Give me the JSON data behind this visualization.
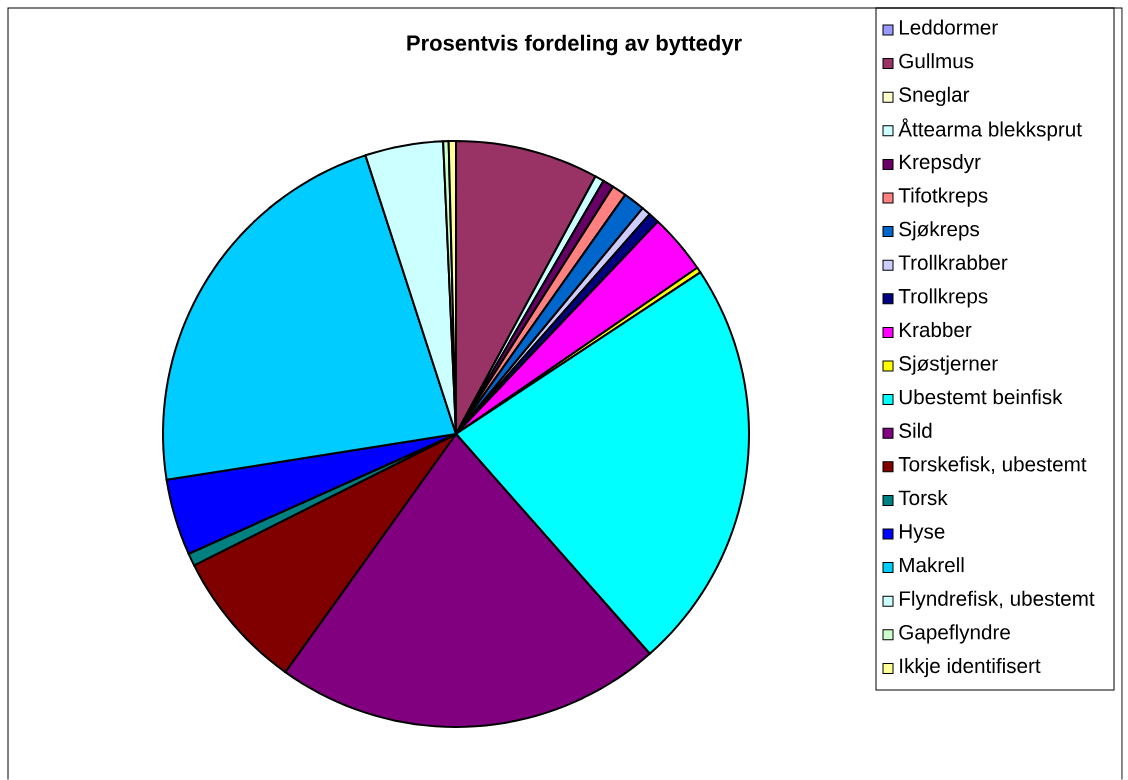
{
  "chart_data": {
    "type": "pie",
    "title": "Prosentvis fordeling av byttedyr",
    "categories": [
      "Leddormer",
      "Gullmus",
      "Sneglar",
      "Åttearma blekksprut",
      "Krepsdyr",
      "Tifotkreps",
      "Sjøkreps",
      "Trollkrabber",
      "Trollkreps",
      "Krabber",
      "Sjøstjerner",
      "Ubestemt beinfisk",
      "Sild",
      "Torskefisk, ubestemt",
      "Torsk",
      "Hyse",
      "Makrell",
      "Flyndrefisk, ubestemt",
      "Gapeflyndre",
      "Ikkje identifisert"
    ],
    "values": [
      null,
      7.9,
      null,
      0.5,
      0.6,
      0.8,
      1.2,
      0.5,
      0.6,
      3.3,
      0.3,
      22.8,
      21.4,
      7.7,
      0.7,
      4.2,
      22.5,
      4.3,
      0.3,
      0.4
    ],
    "colors": [
      "#9999ff",
      "#993366",
      "#ffffcc",
      "#ccffff",
      "#660066",
      "#ff8080",
      "#0066cc",
      "#ccccff",
      "#000080",
      "#ff00ff",
      "#ffff00",
      "#00ffff",
      "#800080",
      "#800000",
      "#008080",
      "#0000ff",
      "#00ccff",
      "#ccffff",
      "#ccffcc",
      "#ffff99"
    ],
    "legend": "right"
  }
}
